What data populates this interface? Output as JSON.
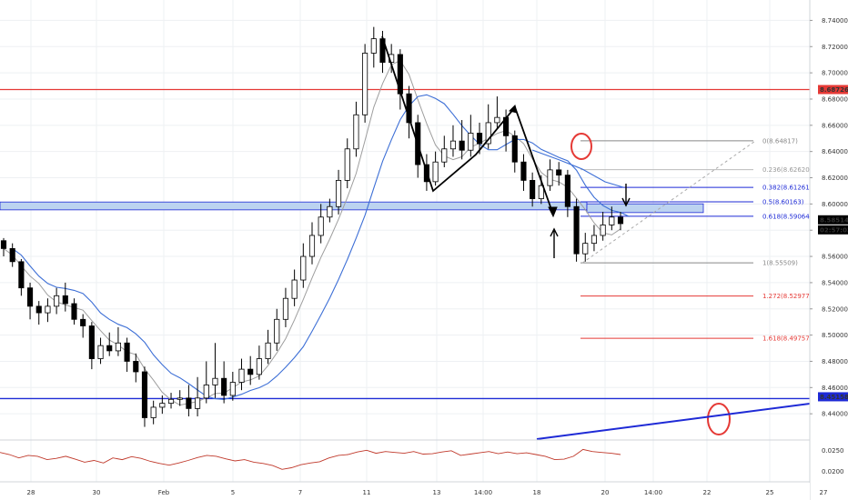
{
  "chart_data": {
    "type": "candlestick",
    "title": "",
    "xlabel": "",
    "ylabel": "",
    "ylim": [
      8.42,
      8.75
    ],
    "y_ticks": [
      "8.74000",
      "8.72000",
      "8.70000",
      "8.68000",
      "8.66000",
      "8.64000",
      "8.62000",
      "8.60000",
      "8.58000",
      "8.56000",
      "8.54000",
      "8.52000",
      "8.50000",
      "8.48000",
      "8.46000",
      "8.44000"
    ],
    "x_ticks": [
      "28",
      "30",
      "Feb",
      "5",
      "7",
      "11",
      "13",
      "14:00",
      "18",
      "20",
      "14:00",
      "22",
      "25",
      "27"
    ],
    "grid": true,
    "price_badges": [
      {
        "label": "8.68726",
        "value": 8.68726,
        "color": "#e53935"
      },
      {
        "label": "8.58514",
        "value": 8.58514,
        "color": "#000000"
      },
      {
        "label": "02:57:03",
        "color": "#000000"
      },
      {
        "label": "8.45158",
        "value": 8.45158,
        "color": "#1e2ad6"
      }
    ],
    "horizontal_lines": [
      {
        "value": 8.68726,
        "color": "#e53935"
      },
      {
        "value": 8.45158,
        "color": "#1e2ad6"
      }
    ],
    "zone": {
      "from": 8.5955,
      "to": 8.6015,
      "color": "#bcd3f0"
    },
    "fibonacci": [
      {
        "label": "0(8.64817)",
        "value": 8.64817,
        "color": "#888888"
      },
      {
        "label": "0.236(8.62620)",
        "value": 8.6262,
        "color": "#bbbbbb"
      },
      {
        "label": "0.382(8.61261)",
        "value": 8.61261,
        "color": "#1e2ad6"
      },
      {
        "label": "0.5(8.60163)",
        "value": 8.60163,
        "color": "#1e2ad6"
      },
      {
        "label": "0.618(8.59064)",
        "value": 8.59064,
        "color": "#1e2ad6"
      },
      {
        "label": "1(8.55509)",
        "value": 8.55509,
        "color": "#888888"
      },
      {
        "label": "1.272(8.52977)",
        "value": 8.52977,
        "color": "#e53935"
      },
      {
        "label": "1.618(8.49757)",
        "value": 8.49757,
        "color": "#e53935"
      }
    ],
    "oscillator": {
      "ylim": [
        0.018,
        0.027
      ],
      "ticks": [
        "0.0250",
        "0.0200"
      ],
      "color": "#c0392b"
    },
    "candles": [
      [
        8.572,
        8.566,
        8.574,
        8.56
      ],
      [
        8.566,
        8.556,
        8.57,
        8.552
      ],
      [
        8.556,
        8.536,
        8.558,
        8.53
      ],
      [
        8.536,
        8.522,
        8.54,
        8.512
      ],
      [
        8.522,
        8.517,
        8.526,
        8.508
      ],
      [
        8.517,
        8.522,
        8.528,
        8.51
      ],
      [
        8.522,
        8.53,
        8.536,
        8.516
      ],
      [
        8.53,
        8.524,
        8.54,
        8.518
      ],
      [
        8.524,
        8.512,
        8.528,
        8.508
      ],
      [
        8.512,
        8.507,
        8.516,
        8.498
      ],
      [
        8.507,
        8.482,
        8.51,
        8.474
      ],
      [
        8.482,
        8.492,
        8.498,
        8.478
      ],
      [
        8.492,
        8.488,
        8.502,
        8.484
      ],
      [
        8.488,
        8.494,
        8.506,
        8.484
      ],
      [
        8.494,
        8.48,
        8.498,
        8.472
      ],
      [
        8.48,
        8.472,
        8.486,
        8.464
      ],
      [
        8.472,
        8.437,
        8.476,
        8.43
      ],
      [
        8.437,
        8.445,
        8.45,
        8.432
      ],
      [
        8.445,
        8.448,
        8.454,
        8.44
      ],
      [
        8.448,
        8.451,
        8.456,
        8.444
      ],
      [
        8.451,
        8.452,
        8.458,
        8.446
      ],
      [
        8.452,
        8.444,
        8.462,
        8.438
      ],
      [
        8.444,
        8.452,
        8.468,
        8.438
      ],
      [
        8.452,
        8.462,
        8.48,
        8.448
      ],
      [
        8.462,
        8.467,
        8.494,
        8.452
      ],
      [
        8.467,
        8.454,
        8.48,
        8.448
      ],
      [
        8.454,
        8.464,
        8.472,
        8.45
      ],
      [
        8.464,
        8.474,
        8.482,
        8.458
      ],
      [
        8.474,
        8.47,
        8.484,
        8.462
      ],
      [
        8.47,
        8.482,
        8.492,
        8.466
      ],
      [
        8.482,
        8.494,
        8.504,
        8.478
      ],
      [
        8.494,
        8.512,
        8.52,
        8.488
      ],
      [
        8.512,
        8.528,
        8.536,
        8.506
      ],
      [
        8.528,
        8.542,
        8.55,
        8.522
      ],
      [
        8.542,
        8.56,
        8.57,
        8.536
      ],
      [
        8.56,
        8.576,
        8.586,
        8.554
      ],
      [
        8.576,
        8.59,
        8.6,
        8.57
      ],
      [
        8.59,
        8.598,
        8.604,
        8.586
      ],
      [
        8.598,
        8.618,
        8.626,
        8.592
      ],
      [
        8.618,
        8.642,
        8.65,
        8.612
      ],
      [
        8.642,
        8.668,
        8.678,
        8.636
      ],
      [
        8.668,
        8.715,
        8.722,
        8.662
      ],
      [
        8.715,
        8.726,
        8.735,
        8.704
      ],
      [
        8.726,
        8.708,
        8.732,
        8.7
      ],
      [
        8.708,
        8.714,
        8.722,
        8.7
      ],
      [
        8.714,
        8.684,
        8.718,
        8.672
      ],
      [
        8.684,
        8.662,
        8.69,
        8.65
      ],
      [
        8.662,
        8.63,
        8.668,
        8.62
      ],
      [
        8.63,
        8.617,
        8.638,
        8.61
      ],
      [
        8.617,
        8.632,
        8.64,
        8.614
      ],
      [
        8.632,
        8.642,
        8.652,
        8.628
      ],
      [
        8.642,
        8.648,
        8.66,
        8.636
      ],
      [
        8.648,
        8.641,
        8.664,
        8.634
      ],
      [
        8.641,
        8.654,
        8.668,
        8.636
      ],
      [
        8.654,
        8.646,
        8.662,
        8.638
      ],
      [
        8.646,
        8.662,
        8.676,
        8.642
      ],
      [
        8.662,
        8.666,
        8.682,
        8.658
      ],
      [
        8.666,
        8.652,
        8.672,
        8.64
      ],
      [
        8.652,
        8.632,
        8.656,
        8.624
      ],
      [
        8.632,
        8.618,
        8.638,
        8.61
      ],
      [
        8.618,
        8.604,
        8.624,
        8.598
      ],
      [
        8.604,
        8.614,
        8.622,
        8.6
      ],
      [
        8.614,
        8.626,
        8.634,
        8.61
      ],
      [
        8.626,
        8.622,
        8.632,
        8.614
      ],
      [
        8.622,
        8.598,
        8.626,
        8.59
      ],
      [
        8.598,
        8.562,
        8.604,
        8.556
      ],
      [
        8.562,
        8.57,
        8.578,
        8.556
      ],
      [
        8.57,
        8.576,
        8.584,
        8.564
      ],
      [
        8.576,
        8.584,
        8.594,
        8.572
      ],
      [
        8.584,
        8.59,
        8.598,
        8.58
      ],
      [
        8.59,
        8.585,
        8.594,
        8.58
      ]
    ]
  }
}
